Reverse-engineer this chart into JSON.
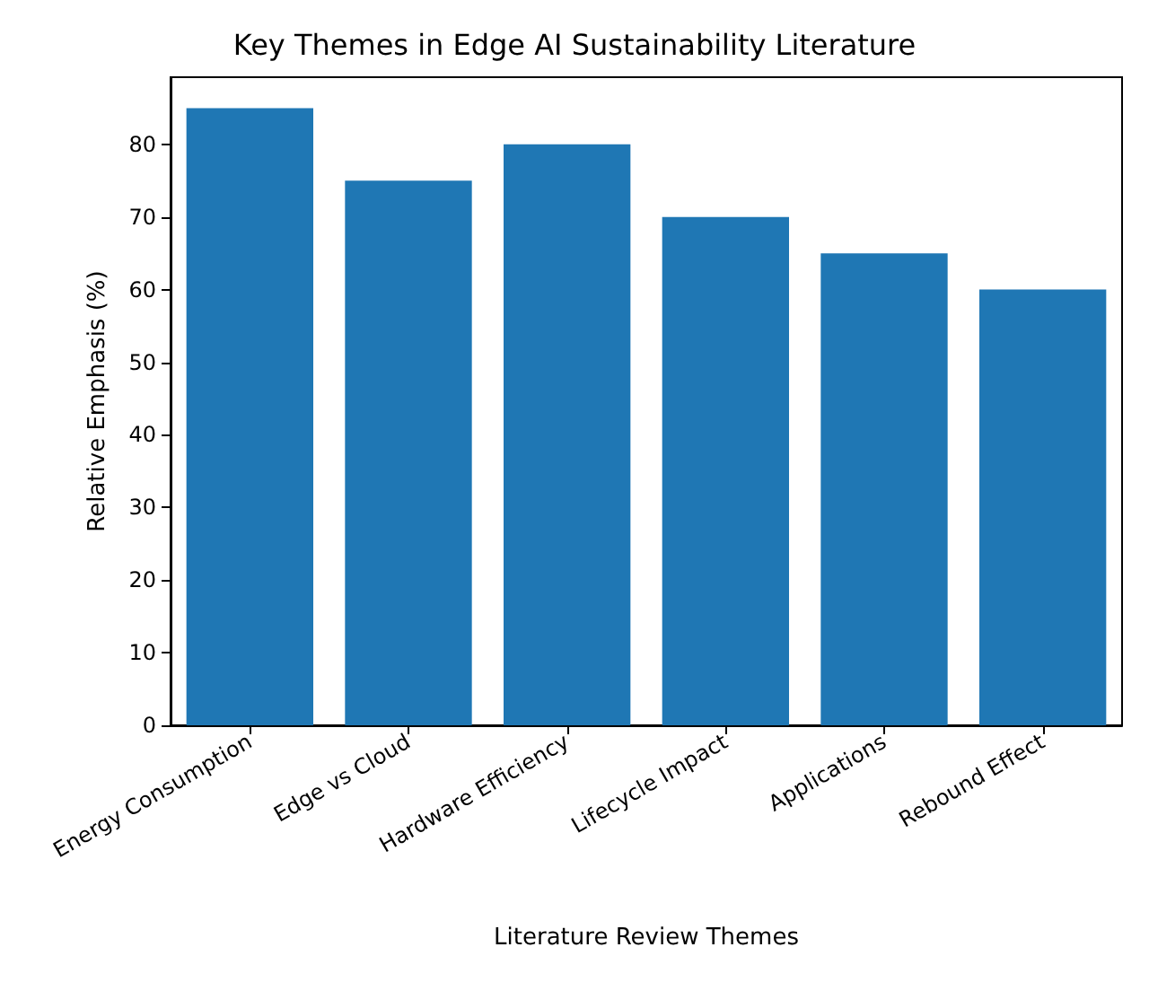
{
  "chart_data": {
    "type": "bar",
    "title": "Key Themes in Edge AI Sustainability Literature",
    "xlabel": "Literature Review Themes",
    "ylabel": "Relative Emphasis (%)",
    "categories": [
      "Energy Consumption",
      "Edge vs Cloud",
      "Hardware Efficiency",
      "Lifecycle Impact",
      "Applications",
      "Rebound Effect"
    ],
    "values": [
      85,
      75,
      80,
      70,
      65,
      60
    ],
    "color": "#1f77b4",
    "ylim": [
      0,
      89.25
    ],
    "yticks": [
      0,
      10,
      20,
      30,
      40,
      50,
      60,
      70,
      80
    ],
    "grid": false
  }
}
